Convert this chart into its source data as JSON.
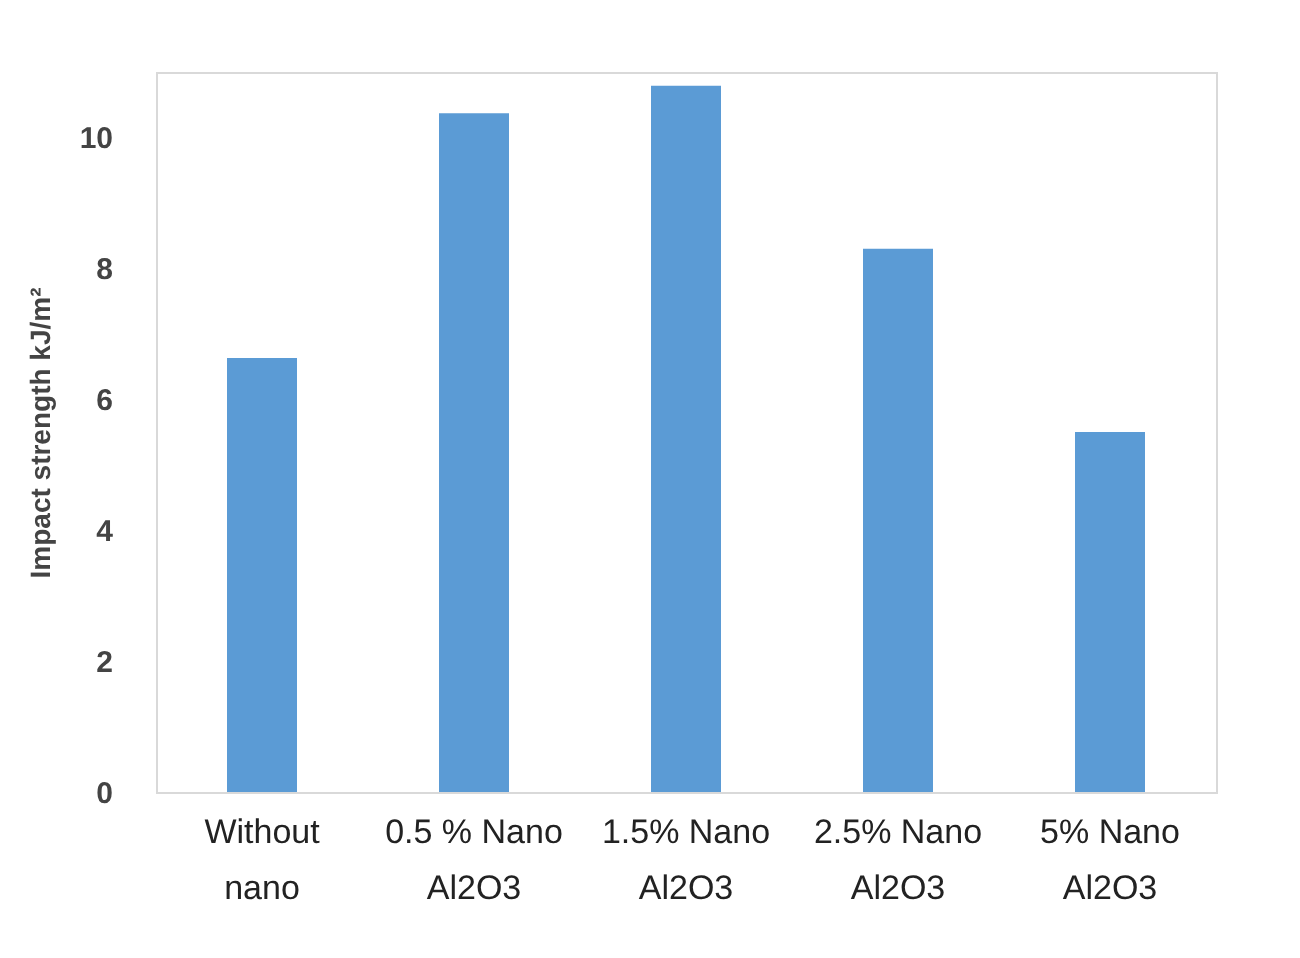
{
  "chart_data": {
    "type": "bar",
    "ylabel": "Impact strength  kJ/m²",
    "categories": [
      "Without nano",
      "0.5 % Nano Al2O3",
      "1.5% Nano Al2O3",
      "2.5% Nano Al2O3",
      "5% Nano Al2O3"
    ],
    "values": [
      6.63,
      10.37,
      10.79,
      8.3,
      5.5
    ],
    "color": "#5b9bd5",
    "ylim": [
      0,
      11
    ],
    "yticks": [
      0,
      2,
      4,
      6,
      8,
      10
    ],
    "grid": false
  }
}
